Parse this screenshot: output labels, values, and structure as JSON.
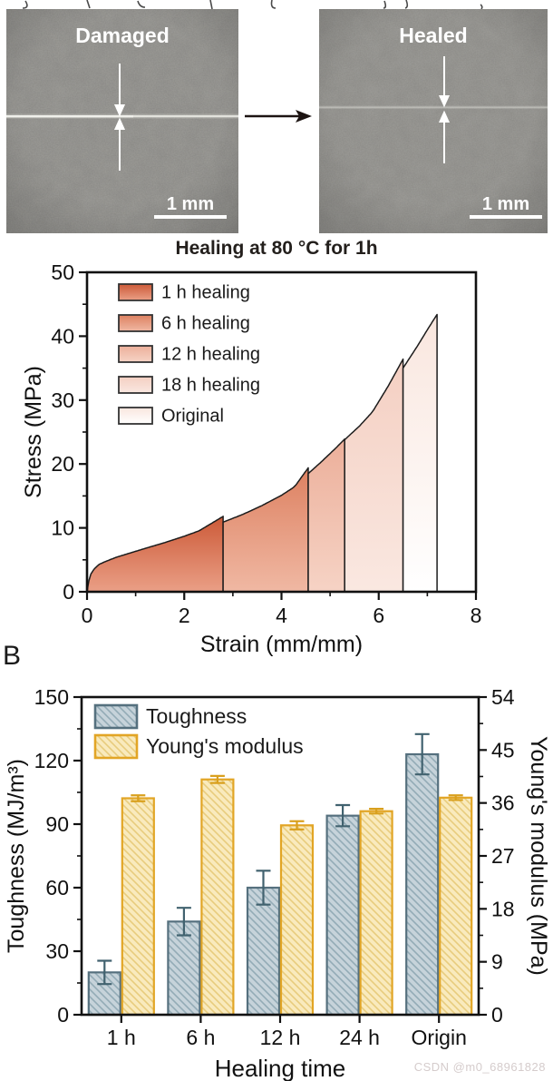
{
  "figure": {
    "damaged": {
      "label": "Damaged",
      "scale_bar": "1 mm"
    },
    "healed": {
      "label": "Healed",
      "scale_bar": "1 mm"
    },
    "arrow_icon": "right-arrow"
  },
  "watermark": "CSDN @m0_68961828",
  "panel_b_label": "B",
  "chart_data": [
    {
      "id": "stress-strain",
      "type": "area",
      "title": "Healing at 80 °C for 1h",
      "xlabel": "Strain (mm/mm)",
      "ylabel": "Stress (MPa)",
      "xlim": [
        0,
        8
      ],
      "ylim": [
        0,
        50
      ],
      "xticks": [
        0,
        2,
        4,
        6,
        8
      ],
      "yticks": [
        0,
        10,
        20,
        30,
        40,
        50
      ],
      "xminor": [
        1,
        3,
        5,
        7
      ],
      "yminor": [
        5,
        15,
        25,
        35,
        45
      ],
      "grid": false,
      "legend_position": "top-left",
      "master_curve": {
        "x": [
          0,
          0.03,
          0.08,
          0.15,
          0.25,
          0.4,
          0.6,
          0.9,
          1.2,
          1.6,
          2.0,
          2.4,
          2.8,
          3.2,
          3.6,
          4.0,
          4.3,
          4.55,
          4.8,
          5.05,
          5.3,
          5.6,
          5.9,
          6.2,
          6.5,
          6.8,
          7.0,
          7.2
        ],
        "y": [
          0,
          1.5,
          2.8,
          3.6,
          4.3,
          4.8,
          5.4,
          6.1,
          6.8,
          7.7,
          8.7,
          9.8,
          10.9,
          12.1,
          13.5,
          15.1,
          16.6,
          18.5,
          20.2,
          22.0,
          23.8,
          25.9,
          28.4,
          31.5,
          35.0,
          38.5,
          41.0,
          43.4
        ]
      },
      "series": [
        {
          "name": "1 h healing",
          "strain_start": 0,
          "strain_break": 2.8,
          "peak_stress": 11.8,
          "blend": 0.5,
          "color_top": "#cc5a38",
          "color_bottom": "#ea9f86"
        },
        {
          "name": "6 h healing",
          "strain_start": 2.8,
          "strain_break": 4.55,
          "peak_stress": 19.4,
          "blend": 0.3,
          "color_top": "#dd8161",
          "color_bottom": "#f0b8a3"
        },
        {
          "name": "12 h healing",
          "strain_start": 4.55,
          "strain_break": 5.3,
          "peak_stress": 23.9,
          "blend": 0.2,
          "color_top": "#ecaf9a",
          "color_bottom": "#f6d3c5"
        },
        {
          "name": "18 h healing",
          "strain_start": 5.3,
          "strain_break": 6.5,
          "peak_stress": 36.4,
          "blend": 0.65,
          "color_top": "#f4cfc2",
          "color_bottom": "#fae8e1"
        },
        {
          "name": "Original",
          "strain_start": 6.5,
          "strain_break": 7.2,
          "peak_stress": 43.4,
          "blend": 0.25,
          "color_top": "#f9e6de",
          "color_bottom": "#ffffff"
        }
      ]
    },
    {
      "id": "toughness-modulus",
      "type": "bar",
      "categories": [
        "1 h",
        "6 h",
        "12 h",
        "24 h",
        "Origin"
      ],
      "xlabel": "Healing time",
      "left_axis": {
        "label": "Toughness (MJ/m³)",
        "lim": [
          0,
          150
        ],
        "ticks": [
          0,
          30,
          60,
          90,
          120,
          150
        ],
        "minor": [
          15,
          45,
          75,
          105,
          135
        ]
      },
      "right_axis": {
        "label": "Young's modulus (MPa)",
        "lim": [
          0,
          54
        ],
        "ticks": [
          0,
          9,
          18,
          27,
          36,
          45,
          54
        ],
        "minor": [
          4.5,
          13.5,
          22.5,
          31.5,
          40.5,
          49.5
        ]
      },
      "legend_position": "top-left",
      "series": [
        {
          "name": "Toughness",
          "axis": "left",
          "unit": "MJ/m3",
          "values": [
            20,
            44,
            60,
            94,
            123
          ],
          "errors": [
            5.5,
            6.5,
            8,
            5,
            9.5
          ],
          "fill": "#c6d3da",
          "hatch": "#93abb6",
          "border": "#55707e",
          "error_color": "#41626f"
        },
        {
          "name": "Young's modulus",
          "axis": "right",
          "unit": "MPa",
          "values": [
            36.8,
            40.0,
            32.2,
            34.6,
            36.9
          ],
          "errors": [
            0.5,
            0.6,
            0.7,
            0.4,
            0.4
          ],
          "fill": "#f9eabd",
          "hatch": "#e8cc7d",
          "border": "#e2a525",
          "error_color": "#d9a01e"
        }
      ]
    }
  ]
}
